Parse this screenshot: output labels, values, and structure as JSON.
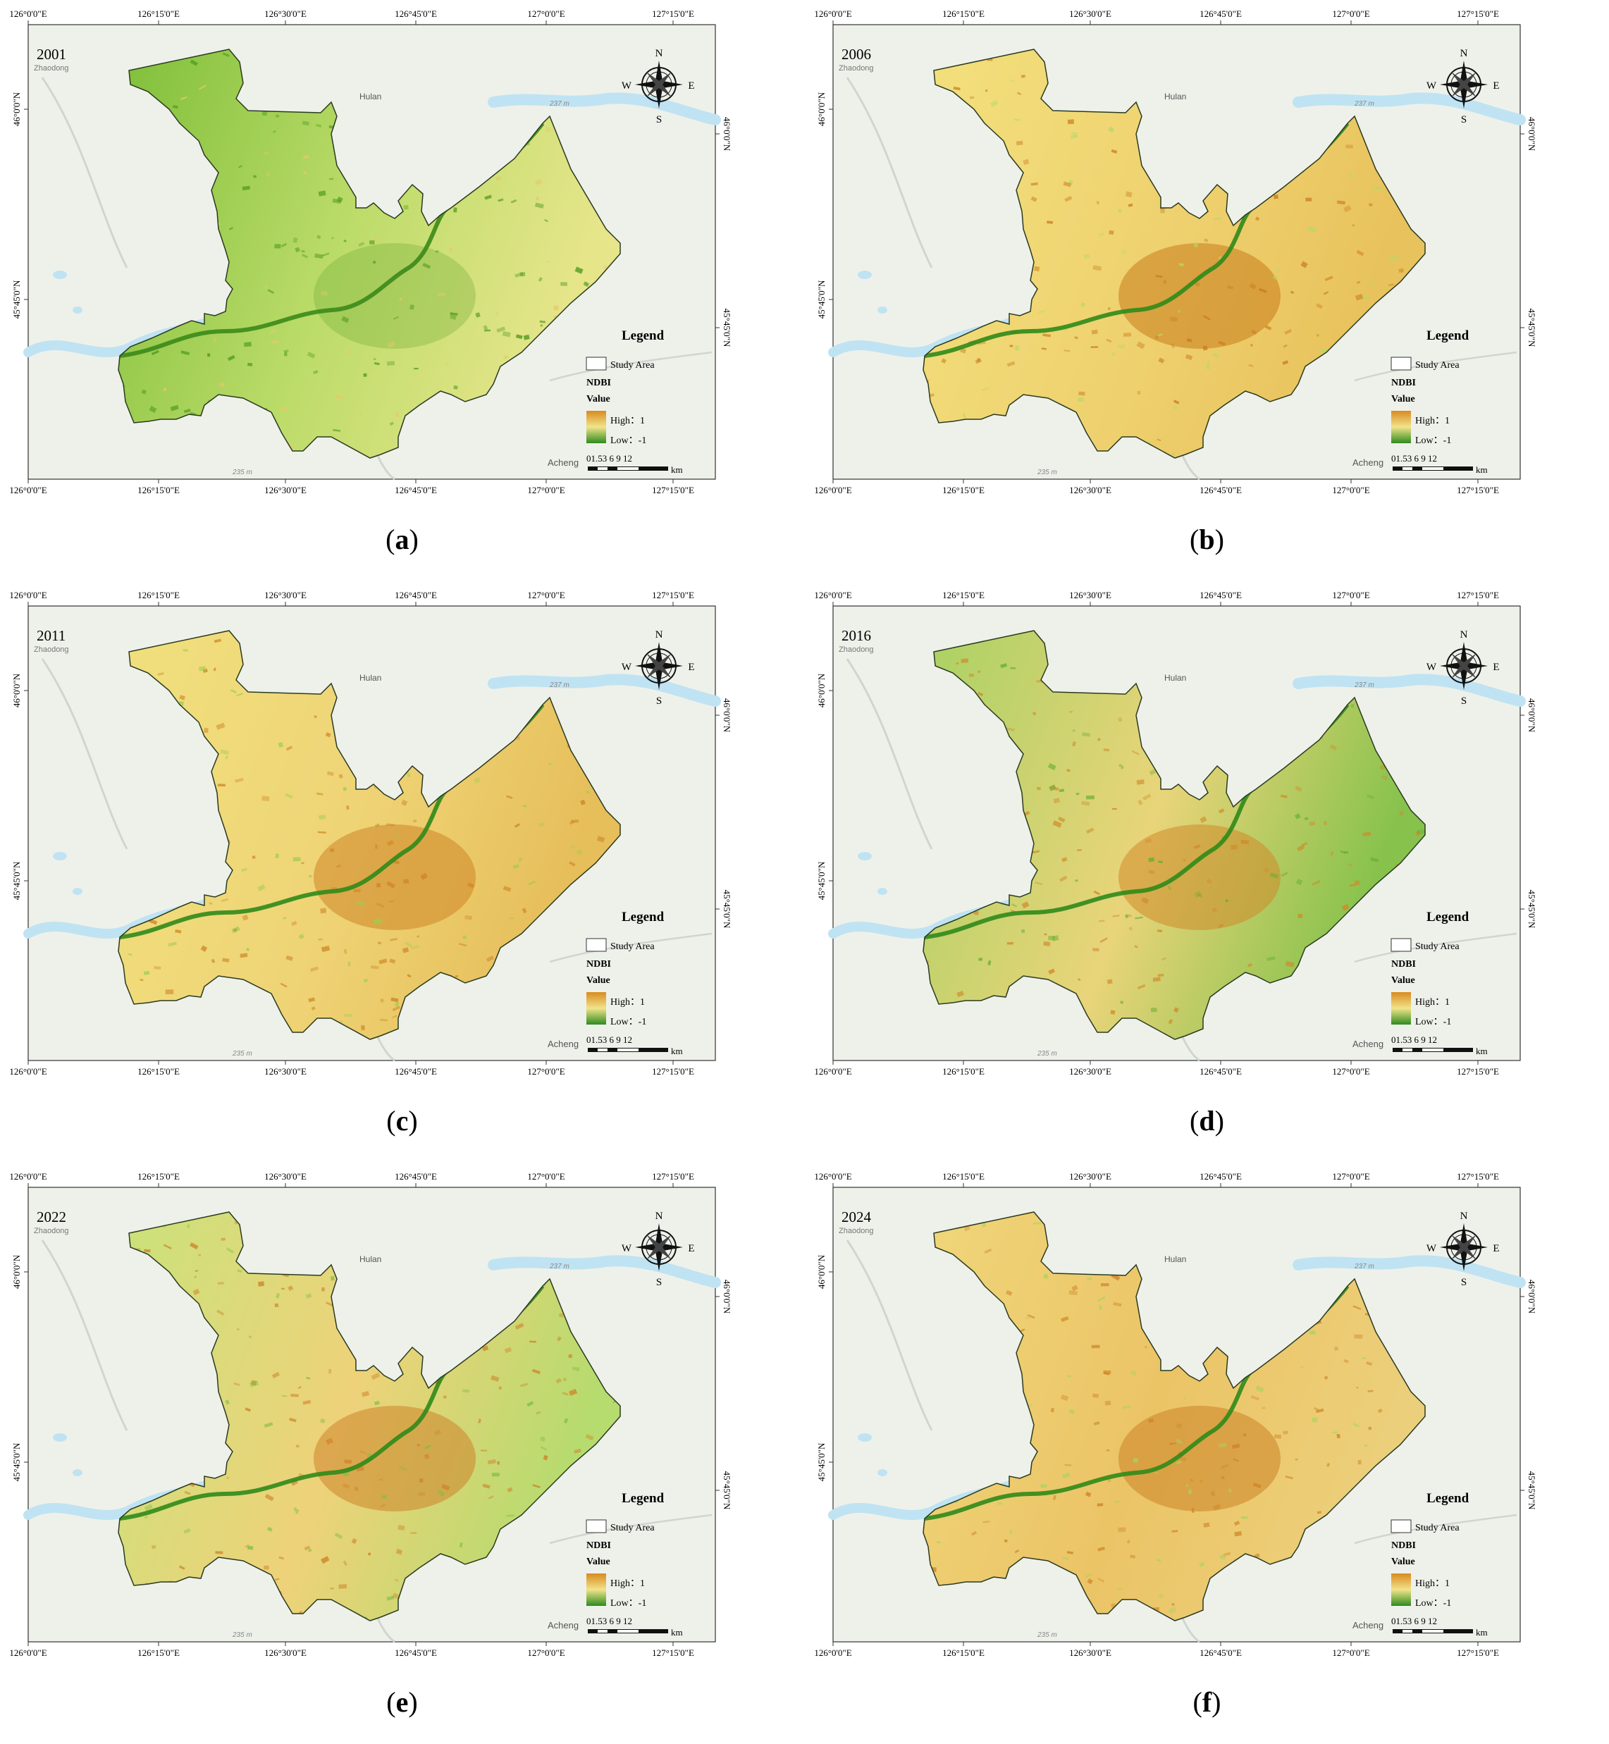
{
  "figure": {
    "panels": [
      {
        "id": "a",
        "year": "2001",
        "caption": "a",
        "theme": "green"
      },
      {
        "id": "b",
        "year": "2006",
        "caption": "b",
        "theme": "yellow"
      },
      {
        "id": "c",
        "year": "2011",
        "caption": "c",
        "theme": "yellow2"
      },
      {
        "id": "d",
        "year": "2016",
        "caption": "d",
        "theme": "mixed"
      },
      {
        "id": "e",
        "year": "2022",
        "caption": "e",
        "theme": "mixed2"
      },
      {
        "id": "f",
        "year": "2024",
        "caption": "f",
        "theme": "yellow3"
      }
    ],
    "axes": {
      "top_ticks": [
        "126°0'0\"E",
        "126°15'0\"E",
        "126°30'0\"E",
        "126°45'0\"E",
        "127°0'0\"E",
        "127°15'0\"E"
      ],
      "bottom_ticks": [
        "126°0'0\"E",
        "126°15'0\"E",
        "126°30'0\"E",
        "126°45'0\"E",
        "127°0'0\"E",
        "127°15'0\"E"
      ],
      "left_ticks": [
        "46°0'0\"N",
        "45°45'0\"N"
      ],
      "right_ticks": [
        "46°0'0\"N",
        "45°45'0\"N"
      ]
    },
    "basemap_labels": {
      "zhaodong": "Zhaodong",
      "hulan": "Hulan",
      "acheng": "Acheng",
      "elev1": "237 m",
      "elev2": "235 m"
    },
    "compass": {
      "n": "N",
      "s": "S",
      "e": "E",
      "w": "W"
    },
    "legend": {
      "title": "Legend",
      "study_area": "Study Area",
      "index": "NDBI",
      "value": "Value",
      "high": "High：1",
      "low": "Low：-1"
    },
    "scalebar": {
      "ticks": "01.53      6      9     12",
      "unit": "km"
    },
    "colors": {
      "high": "#d98a1f",
      "mid": "#f1e48a",
      "low": "#2e8b1e",
      "water": "#bfe3f2",
      "basemap": "#eef1ea"
    }
  }
}
